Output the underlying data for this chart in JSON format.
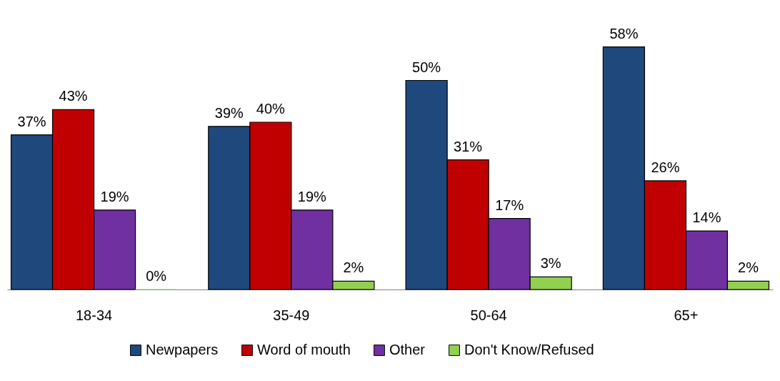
{
  "chart_data": {
    "type": "bar",
    "categories": [
      "18-34",
      "35-49",
      "50-64",
      "65+"
    ],
    "series": [
      {
        "name": "Newpapers",
        "color": "#1f497d",
        "values": [
          37,
          39,
          50,
          58
        ],
        "value_labels": [
          "37%",
          "39%",
          "50%",
          "58%"
        ]
      },
      {
        "name": "Word of mouth",
        "color": "#c00000",
        "values": [
          43,
          40,
          31,
          26
        ],
        "value_labels": [
          "43%",
          "40%",
          "31%",
          "26%"
        ]
      },
      {
        "name": "Other",
        "color": "#7030a0",
        "values": [
          19,
          19,
          17,
          14
        ],
        "value_labels": [
          "19%",
          "19%",
          "17%",
          "14%"
        ]
      },
      {
        "name": "Don't Know/Refused",
        "color": "#92d050",
        "values": [
          0,
          2,
          3,
          2
        ],
        "value_labels": [
          "0%",
          "2%",
          "3%",
          "2%"
        ]
      }
    ],
    "legend": "bottom",
    "grid": false
  }
}
